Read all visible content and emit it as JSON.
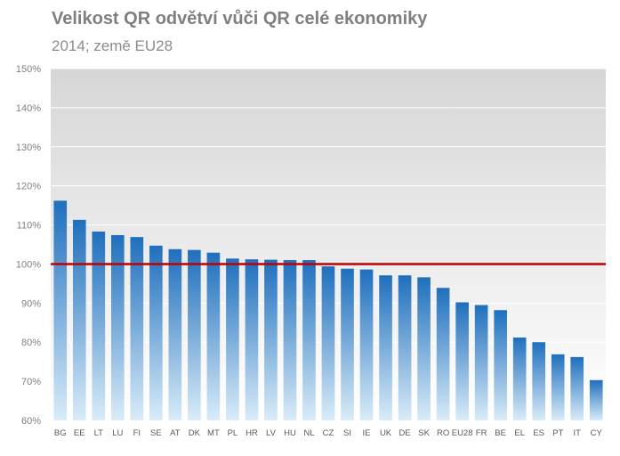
{
  "title": "Velikost QR odvětví vůči QR celé ekonomiky",
  "subtitle": "2014; země EU28",
  "colors": {
    "bar_top": "#1f6fbd",
    "bar_bottom": "#d9ecf8",
    "plot_bg_top": "#d6d6d6",
    "plot_bg_bottom": "#ffffff",
    "reference_line": "#c00000",
    "gridline": "#ffffff"
  },
  "chart_data": {
    "type": "bar",
    "title": "Velikost QR odvětví vůči QR celé ekonomiky",
    "subtitle": "2014; země EU28",
    "categories": [
      "BG",
      "EE",
      "LT",
      "LU",
      "FI",
      "SE",
      "AT",
      "DK",
      "MT",
      "PL",
      "HR",
      "LV",
      "HU",
      "NL",
      "CZ",
      "SI",
      "IE",
      "UK",
      "DE",
      "SK",
      "RO",
      "EU28",
      "FR",
      "BE",
      "EL",
      "ES",
      "PT",
      "IT",
      "CY"
    ],
    "values": [
      116.2,
      111.3,
      108.3,
      107.4,
      106.9,
      104.7,
      103.8,
      103.6,
      102.9,
      101.4,
      101.2,
      101.1,
      101.0,
      101.0,
      99.4,
      98.8,
      98.6,
      97.1,
      97.1,
      96.6,
      93.9,
      90.2,
      89.5,
      88.2,
      81.2,
      80.0,
      76.9,
      76.2,
      70.3
    ],
    "yticks": [
      "60%",
      "70%",
      "80%",
      "90%",
      "100%",
      "110%",
      "120%",
      "130%",
      "140%",
      "150%"
    ],
    "ylim": [
      60,
      150
    ],
    "reference_line": 100,
    "grid": true,
    "legend": "none",
    "xlabel": "",
    "ylabel": ""
  }
}
